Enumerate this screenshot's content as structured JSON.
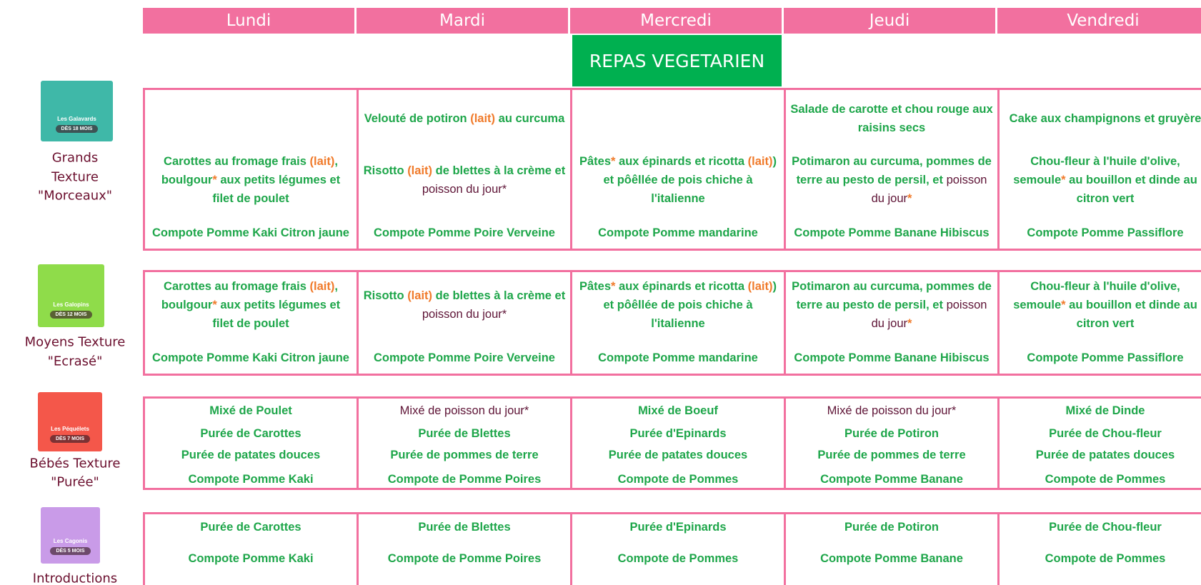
{
  "days": [
    "Lundi",
    "Mardi",
    "Mercredi",
    "Jeudi",
    "Vendredi"
  ],
  "banner": "REPAS VEGETARIEN",
  "groups": [
    {
      "logo": {
        "name": "Les Galavards",
        "age": "DÈS 18 MOIS",
        "color": "#3fb8a8"
      },
      "label": [
        "Grands",
        "Texture",
        "\"Morceaux\""
      ],
      "cells": [
        {
          "main": [
            {
              "text": "Carottes au fromage frais ",
              "color": "green"
            },
            {
              "text": "(lait)",
              "color": "orange"
            },
            {
              "text": ", boulgour",
              "color": "green"
            },
            {
              "text": "*",
              "color": "orange"
            },
            {
              "text": " aux petits légumes et filet de poulet",
              "color": "green"
            }
          ],
          "dessert": [
            {
              "text": "Compote Pomme Kaki Citron jaune",
              "color": "green"
            }
          ]
        },
        {
          "starter": [
            {
              "text": "Velouté de potiron ",
              "color": "green"
            },
            {
              "text": "(lait)",
              "color": "orange"
            },
            {
              "text": " au curcuma",
              "color": "green"
            }
          ],
          "main": [
            {
              "text": "Risotto ",
              "color": "green"
            },
            {
              "text": "(lait)",
              "color": "orange"
            },
            {
              "text": " de blettes à la crème et ",
              "color": "green"
            },
            {
              "text": "poisson du jour*",
              "color": "plum"
            }
          ],
          "dessert": [
            {
              "text": "Compote Pomme Poire Verveine",
              "color": "green"
            }
          ]
        },
        {
          "main": [
            {
              "text": "Pâtes",
              "color": "green"
            },
            {
              "text": "*",
              "color": "orange"
            },
            {
              "text": " aux épinards et ricotta ",
              "color": "green"
            },
            {
              "text": "(lait)",
              "color": "orange"
            },
            {
              "text": ") et pôêllée de pois chiche à l'italienne",
              "color": "green"
            }
          ],
          "dessert": [
            {
              "text": "Compote Pomme mandarine",
              "color": "green"
            }
          ]
        },
        {
          "starter": [
            {
              "text": "Salade de carotte et chou rouge aux raisins secs",
              "color": "green"
            }
          ],
          "main": [
            {
              "text": "Potimaron au curcuma, pommes de terre au pesto de persil, et ",
              "color": "green"
            },
            {
              "text": "poisson du jour",
              "color": "plum"
            },
            {
              "text": "*",
              "color": "orange"
            }
          ],
          "dessert": [
            {
              "text": "Compote Pomme Banane Hibiscus",
              "color": "green"
            }
          ]
        },
        {
          "starter": [
            {
              "text": "Cake aux champignons et gruyère",
              "color": "green"
            }
          ],
          "main": [
            {
              "text": "Chou-fleur à l'huile d'olive, semoule",
              "color": "green"
            },
            {
              "text": "*",
              "color": "orange"
            },
            {
              "text": " au bouillon et dinde au citron vert",
              "color": "green"
            }
          ],
          "dessert": [
            {
              "text": "Compote Pomme Passiflore",
              "color": "green"
            }
          ]
        }
      ]
    },
    {
      "logo": {
        "name": "Les Galopins",
        "age": "DÈS 12 MOIS",
        "color": "#8fdc4a"
      },
      "label": [
        "Moyens Texture",
        "\"Ecrasé\""
      ],
      "cells": [
        {
          "main": [
            {
              "text": "Carottes au fromage frais ",
              "color": "green"
            },
            {
              "text": "(lait)",
              "color": "orange"
            },
            {
              "text": ", boulgour",
              "color": "green"
            },
            {
              "text": "*",
              "color": "orange"
            },
            {
              "text": " aux petits légumes et filet de poulet",
              "color": "green"
            }
          ],
          "dessert": [
            {
              "text": "Compote Pomme Kaki Citron jaune",
              "color": "green"
            }
          ]
        },
        {
          "main": [
            {
              "text": "Risotto ",
              "color": "green"
            },
            {
              "text": "(lait)",
              "color": "orange"
            },
            {
              "text": " de blettes à la crème et ",
              "color": "green"
            },
            {
              "text": "poisson du jour*",
              "color": "plum"
            }
          ],
          "dessert": [
            {
              "text": "Compote Pomme Poire Verveine",
              "color": "green"
            }
          ]
        },
        {
          "main": [
            {
              "text": "Pâtes",
              "color": "green"
            },
            {
              "text": "*",
              "color": "orange"
            },
            {
              "text": " aux épinards et ricotta ",
              "color": "green"
            },
            {
              "text": "(lait)",
              "color": "orange"
            },
            {
              "text": ") et pôêllée de pois chiche à l'italienne",
              "color": "green"
            }
          ],
          "dessert": [
            {
              "text": "Compote Pomme mandarine",
              "color": "green"
            }
          ]
        },
        {
          "main": [
            {
              "text": "Potimaron au curcuma, pommes de terre au pesto de persil, et ",
              "color": "green"
            },
            {
              "text": "poisson du jour",
              "color": "plum"
            },
            {
              "text": "*",
              "color": "orange"
            }
          ],
          "dessert": [
            {
              "text": "Compote Pomme Banane Hibiscus",
              "color": "green"
            }
          ]
        },
        {
          "main": [
            {
              "text": "Chou-fleur à l'huile d'olive, semoule",
              "color": "green"
            },
            {
              "text": "*",
              "color": "orange"
            },
            {
              "text": " au bouillon et dinde au citron vert",
              "color": "green"
            }
          ],
          "dessert": [
            {
              "text": "Compote Pomme Passiflore",
              "color": "green"
            }
          ]
        }
      ]
    },
    {
      "logo": {
        "name": "Les Péquélets",
        "age": "DÈS 7 MOIS",
        "color": "#f4574a"
      },
      "label": [
        "Bébés Texture",
        "\"Purée\""
      ],
      "cells": [
        {
          "meat": [
            {
              "text": "Mixé de Poulet",
              "color": "green"
            }
          ],
          "veg": [
            {
              "text": "Purée de Carottes",
              "color": "green"
            }
          ],
          "starch": [
            {
              "text": "Purée de patates douces",
              "color": "green"
            }
          ],
          "dessert": [
            {
              "text": "Compote Pomme Kaki",
              "color": "green"
            }
          ]
        },
        {
          "meat": [
            {
              "text": "Mixé de poisson du jour*",
              "color": "plum"
            }
          ],
          "veg": [
            {
              "text": "Purée de Blettes",
              "color": "green"
            }
          ],
          "starch": [
            {
              "text": "Purée de pommes de terre",
              "color": "green"
            }
          ],
          "dessert": [
            {
              "text": "Compote de Pomme Poires",
              "color": "green"
            }
          ]
        },
        {
          "meat": [
            {
              "text": "Mixé de Boeuf",
              "color": "green"
            }
          ],
          "veg": [
            {
              "text": "Purée d'Epinards",
              "color": "green"
            }
          ],
          "starch": [
            {
              "text": "Purée de patates douces",
              "color": "green"
            }
          ],
          "dessert": [
            {
              "text": "Compote de Pommes",
              "color": "green"
            }
          ]
        },
        {
          "meat": [
            {
              "text": "Mixé de poisson du jour*",
              "color": "plum"
            }
          ],
          "veg": [
            {
              "text": "Purée de Potiron",
              "color": "green"
            }
          ],
          "starch": [
            {
              "text": "Purée de pommes de terre",
              "color": "green"
            }
          ],
          "dessert": [
            {
              "text": "Compote Pomme Banane",
              "color": "green"
            }
          ]
        },
        {
          "meat": [
            {
              "text": "Mixé de Dinde",
              "color": "green"
            }
          ],
          "veg": [
            {
              "text": "Purée de Chou-fleur",
              "color": "green"
            }
          ],
          "starch": [
            {
              "text": "Purée de patates douces",
              "color": "green"
            }
          ],
          "dessert": [
            {
              "text": "Compote de Pommes",
              "color": "green"
            }
          ]
        }
      ]
    },
    {
      "logo": {
        "name": "Les Cagonis",
        "age": "DÈS 5 MOIS",
        "color": "#c99be8"
      },
      "label": [
        "Introductions"
      ],
      "cells": [
        {
          "veg": [
            {
              "text": "Purée de Carottes",
              "color": "green"
            }
          ],
          "dessert": [
            {
              "text": "Compote Pomme Kaki",
              "color": "green"
            }
          ]
        },
        {
          "veg": [
            {
              "text": "Purée de Blettes",
              "color": "green"
            }
          ],
          "dessert": [
            {
              "text": "Compote de Pomme Poires",
              "color": "green"
            }
          ]
        },
        {
          "veg": [
            {
              "text": "Purée d'Epinards",
              "color": "green"
            }
          ],
          "dessert": [
            {
              "text": "Compote de Pommes",
              "color": "green"
            }
          ]
        },
        {
          "veg": [
            {
              "text": "Purée de Potiron",
              "color": "green"
            }
          ],
          "dessert": [
            {
              "text": "Compote Pomme Banane",
              "color": "green"
            }
          ]
        },
        {
          "veg": [
            {
              "text": "Purée de Chou-fleur",
              "color": "green"
            }
          ],
          "dessert": [
            {
              "text": "Compote de Pommes",
              "color": "green"
            }
          ]
        }
      ]
    }
  ]
}
